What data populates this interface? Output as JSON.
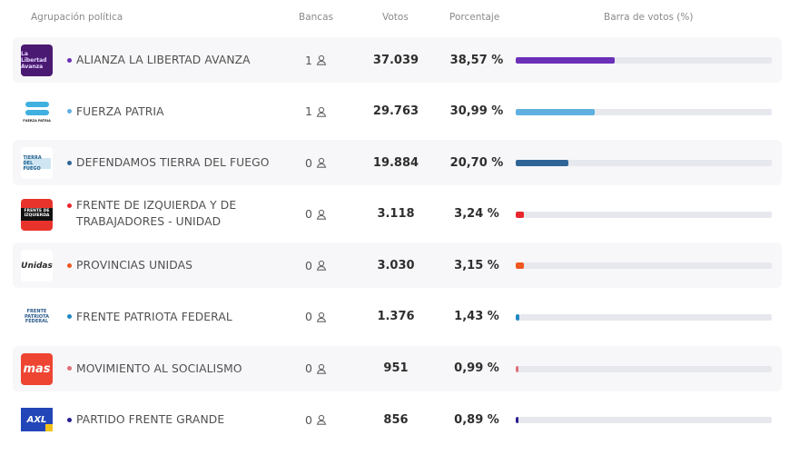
{
  "header": {
    "name": "Agrupación política",
    "bancas": "Bancas",
    "votos": "Votos",
    "porcentaje": "Porcentaje",
    "barra": "Barra de votos (%)"
  },
  "rows": [
    {
      "name": "ALIANZA LA LIBERTAD AVANZA",
      "bancas": "1",
      "votos": "37.039",
      "porcentaje": "38,57 %",
      "pct_value": 38.57,
      "color": "#6b2fb8",
      "logo": "lla"
    },
    {
      "name": "FUERZA PATRIA",
      "bancas": "1",
      "votos": "29.763",
      "porcentaje": "30,99 %",
      "pct_value": 30.99,
      "color": "#5fb0e0",
      "logo": "fp"
    },
    {
      "name": "DEFENDAMOS TIERRA DEL FUEGO",
      "bancas": "0",
      "votos": "19.884",
      "porcentaje": "20,70 %",
      "pct_value": 20.7,
      "color": "#2f6596",
      "logo": "dtf"
    },
    {
      "name": "FRENTE DE IZQUIERDA Y DE TRABAJADORES - UNIDAD",
      "name_line1": "FRENTE DE IZQUIERDA Y DE",
      "name_line2": "TRABAJADORES - UNIDAD",
      "bancas": "0",
      "votos": "3.118",
      "porcentaje": "3,24 %",
      "pct_value": 3.24,
      "color": "#e8262e",
      "logo": "fit"
    },
    {
      "name": "PROVINCIAS UNIDAS",
      "bancas": "0",
      "votos": "3.030",
      "porcentaje": "3,15 %",
      "pct_value": 3.15,
      "color": "#f0561f",
      "logo": "pu"
    },
    {
      "name": "FRENTE PATRIOTA FEDERAL",
      "bancas": "0",
      "votos": "1.376",
      "porcentaje": "1,43 %",
      "pct_value": 1.43,
      "color": "#1e88c4",
      "logo": "fpf"
    },
    {
      "name": "MOVIMIENTO AL SOCIALISMO",
      "bancas": "0",
      "votos": "951",
      "porcentaje": "0,99 %",
      "pct_value": 0.99,
      "color": "#e07078",
      "logo": "mas"
    },
    {
      "name": "PARTIDO FRENTE GRANDE",
      "bancas": "0",
      "votos": "856",
      "porcentaje": "0,89 %",
      "pct_value": 0.89,
      "color": "#2a1f8f",
      "logo": "axl"
    }
  ],
  "logos": {
    "lla": "La Libertad Avanza",
    "fp": "FUERZA PATRIA",
    "dtf": "TIERRA DEL FUEGO",
    "fit": "FRENTE DE IZQUIERDA",
    "pu": "Unidas",
    "fpf": "FRENTE PATRIOTA FEDERAL",
    "mas": "mas",
    "axl": "AXL"
  },
  "icons": {
    "bancas": "person-icon"
  }
}
